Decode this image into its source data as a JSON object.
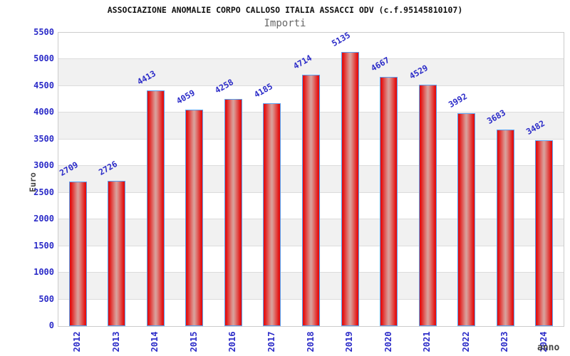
{
  "chart_data": {
    "type": "bar",
    "title": "ASSOCIAZIONE ANOMALIE CORPO CALLOSO ITALIA ASSACCI ODV (c.f.95145810107)",
    "subtitle": "Importi",
    "xlabel": "anno",
    "ylabel": "Euro",
    "categories": [
      "2012",
      "2013",
      "2014",
      "2015",
      "2016",
      "2017",
      "2018",
      "2019",
      "2020",
      "2021",
      "2022",
      "2023",
      "2024"
    ],
    "values": [
      2709,
      2726,
      4413,
      4059,
      4258,
      4185,
      4714,
      5135,
      4667,
      4529,
      3992,
      3683,
      3482
    ],
    "ylim": [
      0,
      5500
    ],
    "y_ticks": [
      0,
      500,
      1000,
      1500,
      2000,
      2500,
      3000,
      3500,
      4000,
      4500,
      5000,
      5500
    ],
    "grid": "alternating horizontal bands every 500, light gridlines at each tick",
    "legend": "none",
    "bar_value_labels_shown": true,
    "colors": {
      "title": "#111111",
      "subtitle": "#666666",
      "tick_label": "#2b2bc8",
      "value_label": "#2b2bc8",
      "axis_title": "#444444",
      "bar_edge": "#e41010",
      "bar_mid": "#d7a39e",
      "bar_border": "#58a0f0",
      "band_white": "#ffffff",
      "band_gray": "#f1f1f1",
      "grid_line": "#dcdcdc",
      "plot_border": "#cccccc"
    }
  }
}
